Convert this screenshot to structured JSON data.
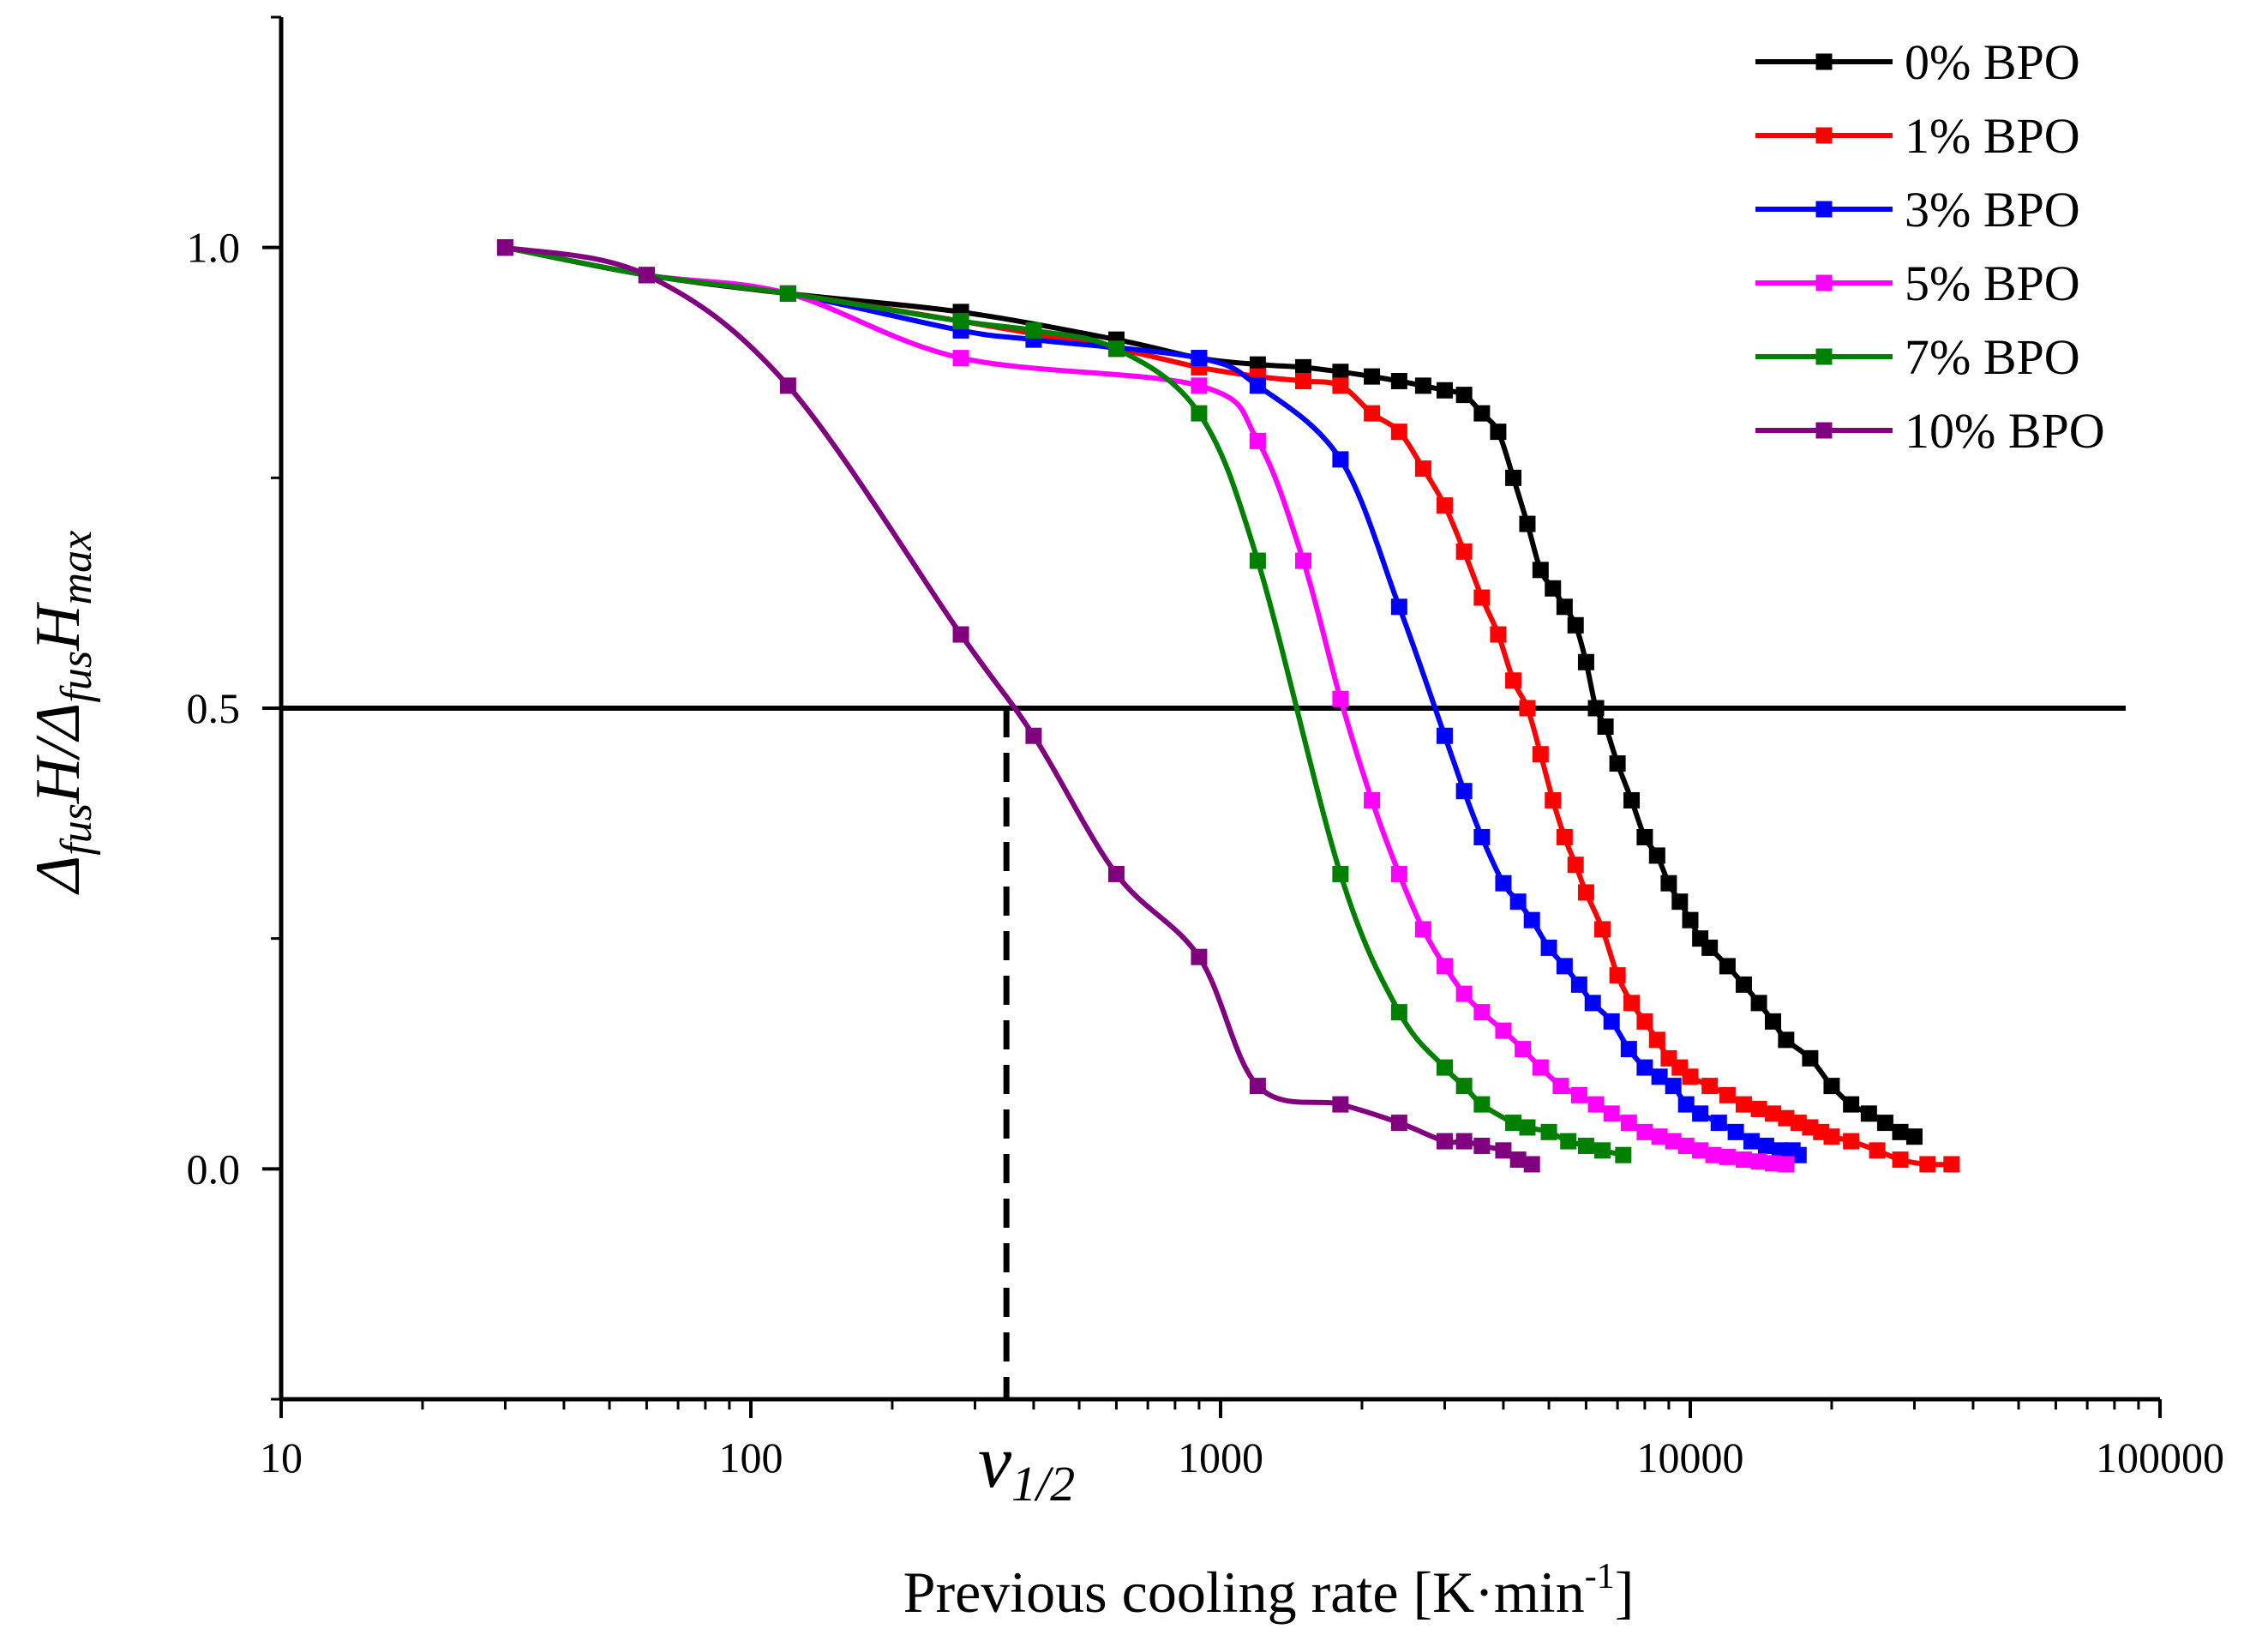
{
  "chart_data": {
    "type": "line",
    "xscale": "log",
    "xlim": [
      10,
      100000
    ],
    "ylim": [
      -0.25,
      1.25
    ],
    "xlabel": "Previous cooling rate [K·min-1]",
    "xlabel_parts": {
      "main": "Previous cooling rate [K·min",
      "sup": "-1",
      "close": "]"
    },
    "ylabel_parts": {
      "delta1": "Δ",
      "sub1": "fus",
      "h1": "H/",
      "delta2": "Δ",
      "sub2": "fus",
      "h2": "H",
      "sub3": "max"
    },
    "x_tick_labels": [
      "10",
      "100",
      "1000",
      "10000",
      "100000"
    ],
    "x_ticks": [
      10,
      100,
      1000,
      10000,
      100000
    ],
    "y_tick_labels": [
      "0.0",
      "0.5",
      "1.0"
    ],
    "y_ticks": [
      0.0,
      0.5,
      1.0
    ],
    "reference_line_y": 0.5,
    "annotation": {
      "main": "v",
      "sub": "1/2",
      "x": 350
    },
    "series": [
      {
        "name": "0% BPO",
        "color": "#000000",
        "x": [
          30,
          60,
          120,
          280,
          600,
          900,
          1200,
          1500,
          1800,
          2100,
          2400,
          2700,
          3000,
          3300,
          3600,
          3900,
          4200,
          4500,
          4800,
          5100,
          5400,
          5700,
          6000,
          6300,
          6600,
          7000,
          7500,
          8000,
          8500,
          9000,
          9500,
          10000,
          10500,
          11000,
          12000,
          13000,
          14000,
          15000,
          16000,
          18000,
          20000,
          22000,
          24000,
          26000,
          28000,
          30000
        ],
        "y": [
          1.0,
          0.97,
          0.95,
          0.93,
          0.9,
          0.88,
          0.873,
          0.87,
          0.865,
          0.86,
          0.855,
          0.85,
          0.845,
          0.84,
          0.82,
          0.8,
          0.75,
          0.7,
          0.65,
          0.63,
          0.61,
          0.59,
          0.55,
          0.5,
          0.48,
          0.44,
          0.4,
          0.36,
          0.34,
          0.31,
          0.29,
          0.27,
          0.25,
          0.24,
          0.22,
          0.2,
          0.18,
          0.16,
          0.14,
          0.12,
          0.09,
          0.07,
          0.06,
          0.05,
          0.04,
          0.035
        ]
      },
      {
        "name": "1% BPO",
        "color": "#ff0000",
        "x": [
          30,
          60,
          120,
          280,
          600,
          900,
          1200,
          1500,
          1800,
          2100,
          2400,
          2700,
          3000,
          3300,
          3600,
          3900,
          4200,
          4500,
          4800,
          5100,
          5400,
          5700,
          6000,
          6500,
          7000,
          7500,
          8000,
          8500,
          9000,
          9500,
          10000,
          11000,
          12000,
          13000,
          14000,
          15000,
          16000,
          17000,
          18000,
          19000,
          20000,
          22000,
          25000,
          28000,
          32000,
          36000
        ],
        "y": [
          1.0,
          0.97,
          0.95,
          0.92,
          0.89,
          0.87,
          0.86,
          0.855,
          0.85,
          0.82,
          0.8,
          0.76,
          0.72,
          0.67,
          0.62,
          0.58,
          0.53,
          0.5,
          0.45,
          0.4,
          0.36,
          0.33,
          0.3,
          0.26,
          0.21,
          0.18,
          0.16,
          0.14,
          0.12,
          0.11,
          0.1,
          0.09,
          0.08,
          0.07,
          0.065,
          0.06,
          0.055,
          0.05,
          0.045,
          0.04,
          0.035,
          0.03,
          0.02,
          0.01,
          0.005,
          0.005
        ]
      },
      {
        "name": "3% BPO",
        "color": "#0000ff",
        "x": [
          30,
          60,
          120,
          280,
          400,
          900,
          1200,
          1800,
          2400,
          3000,
          3300,
          3600,
          4000,
          4300,
          4600,
          5000,
          5400,
          5800,
          6200,
          6800,
          7400,
          8000,
          8600,
          9200,
          9800,
          10500,
          11500,
          12500,
          13500,
          14500,
          15500,
          16500,
          17000
        ],
        "y": [
          1.0,
          0.97,
          0.95,
          0.91,
          0.9,
          0.88,
          0.85,
          0.77,
          0.61,
          0.47,
          0.41,
          0.36,
          0.31,
          0.29,
          0.27,
          0.24,
          0.22,
          0.2,
          0.18,
          0.16,
          0.13,
          0.11,
          0.1,
          0.09,
          0.07,
          0.06,
          0.05,
          0.04,
          0.03,
          0.025,
          0.02,
          0.02,
          0.015
        ]
      },
      {
        "name": "5% BPO",
        "color": "#ff00ff",
        "x": [
          30,
          60,
          120,
          280,
          900,
          1200,
          1500,
          1800,
          2100,
          2400,
          2700,
          3000,
          3300,
          3600,
          4000,
          4400,
          4800,
          5300,
          5800,
          6300,
          6800,
          7400,
          8000,
          8600,
          9200,
          9800,
          10500,
          11200,
          12000,
          13000,
          14000,
          15000,
          16000
        ],
        "y": [
          1.0,
          0.97,
          0.95,
          0.88,
          0.85,
          0.79,
          0.66,
          0.51,
          0.4,
          0.32,
          0.26,
          0.22,
          0.19,
          0.17,
          0.15,
          0.13,
          0.11,
          0.09,
          0.08,
          0.07,
          0.06,
          0.05,
          0.04,
          0.035,
          0.03,
          0.025,
          0.02,
          0.015,
          0.013,
          0.01,
          0.008,
          0.006,
          0.005
        ]
      },
      {
        "name": "7% BPO",
        "color": "#008000",
        "x": [
          30,
          60,
          120,
          280,
          400,
          600,
          900,
          1200,
          1800,
          2400,
          3000,
          3300,
          3600,
          4200,
          4500,
          5000,
          5500,
          6000,
          6500,
          7200
        ],
        "y": [
          1.0,
          0.97,
          0.95,
          0.92,
          0.91,
          0.89,
          0.82,
          0.66,
          0.32,
          0.17,
          0.11,
          0.09,
          0.07,
          0.05,
          0.045,
          0.04,
          0.03,
          0.025,
          0.02,
          0.015
        ]
      },
      {
        "name": "10% BPO",
        "color": "#800080",
        "x": [
          30,
          60,
          120,
          280,
          400,
          600,
          900,
          1200,
          1800,
          2400,
          3000,
          3300,
          3600,
          4000,
          4300,
          4600
        ],
        "y": [
          1.0,
          0.97,
          0.85,
          0.58,
          0.47,
          0.32,
          0.23,
          0.09,
          0.07,
          0.05,
          0.03,
          0.03,
          0.025,
          0.02,
          0.01,
          0.005
        ]
      }
    ]
  }
}
